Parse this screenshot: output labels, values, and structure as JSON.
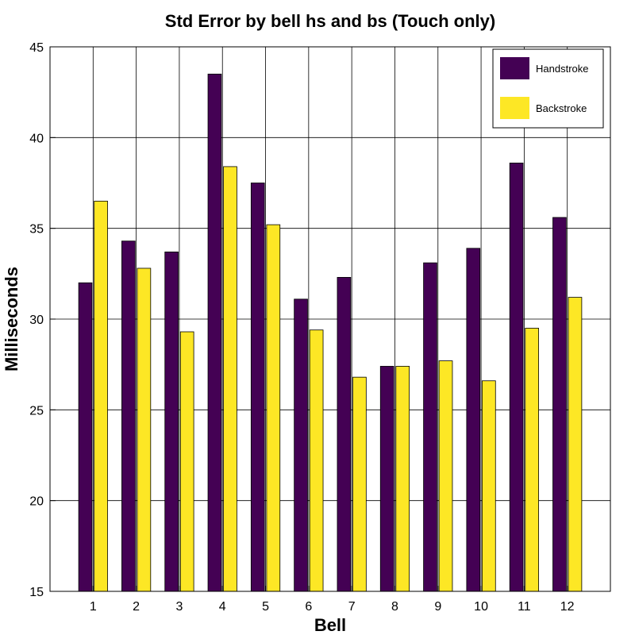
{
  "chart_data": {
    "type": "bar",
    "title": "Std Error by bell hs and bs (Touch only)",
    "xlabel": "Bell",
    "ylabel": "Milliseconds",
    "categories": [
      "1",
      "2",
      "3",
      "4",
      "5",
      "6",
      "7",
      "8",
      "9",
      "10",
      "11",
      "12"
    ],
    "series": [
      {
        "name": "Handstroke",
        "color": "#440154",
        "values": [
          32.0,
          34.3,
          33.7,
          43.5,
          37.5,
          31.1,
          32.3,
          27.4,
          33.1,
          33.9,
          38.6,
          35.6
        ]
      },
      {
        "name": "Backstroke",
        "color": "#fde725",
        "values": [
          36.5,
          32.8,
          29.3,
          38.4,
          35.2,
          29.4,
          26.8,
          27.4,
          27.7,
          26.6,
          29.5,
          31.2
        ]
      }
    ],
    "ylim": [
      15,
      45
    ],
    "yticks": [
      "15",
      "20",
      "25",
      "30",
      "35",
      "40",
      "45"
    ],
    "grid": true,
    "legend_position": "top-right"
  }
}
